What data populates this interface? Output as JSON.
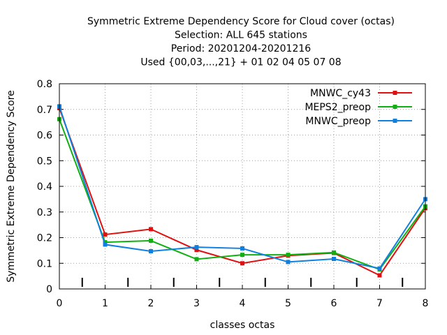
{
  "chart_data": {
    "type": "line",
    "title_lines": [
      "Symmetric Extreme Dependency Score  for Cloud cover (octas)",
      "Selection: ALL    645 stations",
      "Period: 20201204-20201216",
      "Used {00,03,...,21} + 01 02 04 05 07 08"
    ],
    "xlabel": "classes octas",
    "ylabel": "Symmetric Extreme Dependency Score",
    "x": [
      0,
      1,
      2,
      3,
      4,
      5,
      6,
      7,
      8
    ],
    "xlim": [
      0,
      8
    ],
    "ylim": [
      0,
      0.8
    ],
    "x_ticks": [
      0,
      1,
      2,
      3,
      4,
      5,
      6,
      7,
      8
    ],
    "y_ticks": [
      0,
      0.1,
      0.2,
      0.3,
      0.4,
      0.5,
      0.6,
      0.7,
      0.8
    ],
    "bottom_marks_x": [
      0.5,
      1.5,
      2.5,
      3.5,
      4.5,
      5.5,
      6.5,
      7.5
    ],
    "grid": true,
    "legend_position": "top-right",
    "series": [
      {
        "name": "MNWC_cy43",
        "color": "#e01010",
        "values": [
          0.705,
          0.212,
          0.233,
          0.152,
          0.1,
          0.13,
          0.14,
          0.053,
          0.315
        ]
      },
      {
        "name": "MEPS2_preop",
        "color": "#10b010",
        "values": [
          0.662,
          0.182,
          0.188,
          0.116,
          0.133,
          0.133,
          0.142,
          0.076,
          0.322
        ]
      },
      {
        "name": "MNWC_preop",
        "color": "#1080e0",
        "values": [
          0.712,
          0.173,
          0.147,
          0.163,
          0.158,
          0.105,
          0.117,
          0.08,
          0.35
        ]
      }
    ]
  }
}
